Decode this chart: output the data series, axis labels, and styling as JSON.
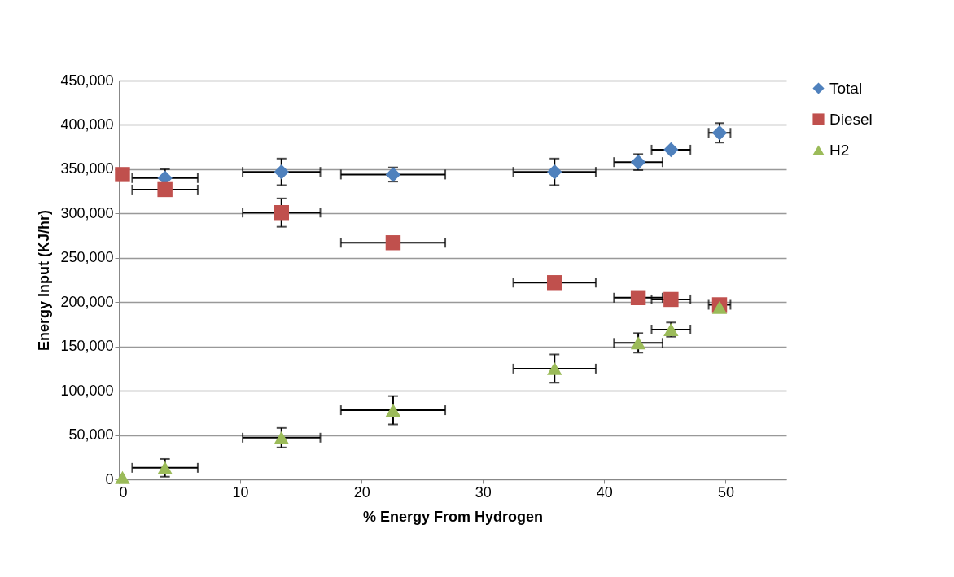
{
  "chart_data": {
    "type": "scatter",
    "xlabel": "% Energy From Hydrogen",
    "ylabel": "Energy Input (KJ/hr)",
    "x": [
      0.3,
      3.8,
      13.4,
      22.6,
      35.9,
      42.8,
      45.5,
      49.5
    ],
    "series": [
      {
        "name": "Total",
        "color": "#4f81bd",
        "marker": "diamond",
        "values": [
          null,
          340000,
          347000,
          344000,
          347000,
          358000,
          372000,
          391000
        ],
        "errors": [
          null,
          10000,
          15000,
          8000,
          15000,
          9000,
          null,
          11000
        ],
        "xerrors": [
          null,
          2.7,
          3.2,
          4.3,
          3.4,
          2.0,
          1.6,
          0.9
        ]
      },
      {
        "name": "Diesel",
        "color": "#c0504d",
        "marker": "square",
        "values": [
          344000,
          327000,
          301000,
          267000,
          222000,
          205000,
          203000,
          197000
        ],
        "errors": [
          null,
          null,
          16000,
          null,
          null,
          null,
          null,
          null
        ],
        "xerrors": [
          null,
          2.7,
          3.2,
          4.3,
          3.4,
          2.0,
          1.6,
          0.9
        ]
      },
      {
        "name": "H2",
        "color": "#9bbb59",
        "marker": "triangle",
        "values": [
          2000,
          13000,
          47000,
          78000,
          125000,
          154000,
          169000,
          194000
        ],
        "errors": [
          null,
          10000,
          11000,
          16000,
          16000,
          11000,
          8000,
          null
        ],
        "xerrors": [
          null,
          2.7,
          3.2,
          4.3,
          3.4,
          2.0,
          1.6,
          null
        ]
      }
    ],
    "xlim": [
      0,
      55
    ],
    "xticks": [
      0,
      10,
      20,
      30,
      40,
      50
    ],
    "ylim": [
      0,
      450000
    ],
    "yticks": [
      {
        "value": 0,
        "label": "0"
      },
      {
        "value": 50000,
        "label": "50,000"
      },
      {
        "value": 100000,
        "label": "100,000"
      },
      {
        "value": 150000,
        "label": "150,000"
      },
      {
        "value": 200000,
        "label": "200,000"
      },
      {
        "value": 250000,
        "label": "250,000"
      },
      {
        "value": 300000,
        "label": "300,000"
      },
      {
        "value": 350000,
        "label": "350,000"
      },
      {
        "value": 400000,
        "label": "400,000"
      },
      {
        "value": 450000,
        "label": "450,000"
      }
    ],
    "grid": "y",
    "legend": "right"
  }
}
